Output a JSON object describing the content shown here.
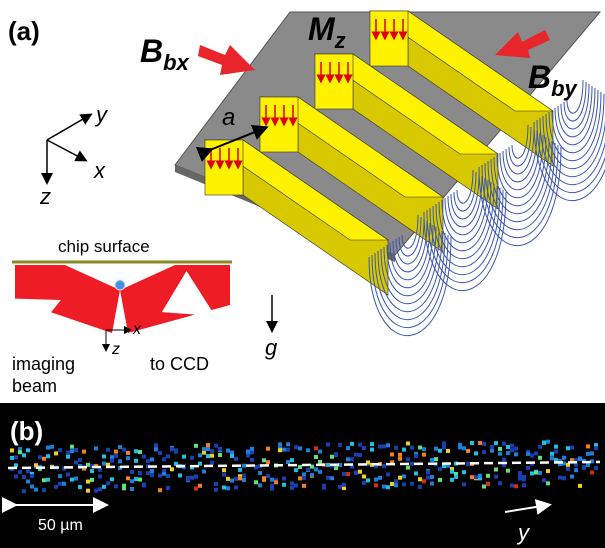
{
  "panel_a": {
    "label": "(a)",
    "field_bx": {
      "symbol": "B",
      "subscript": "bx"
    },
    "magnetization": {
      "symbol": "M",
      "subscript": "z"
    },
    "field_by": {
      "symbol": "B",
      "subscript": "by"
    },
    "period": "a",
    "axes": {
      "y": "y",
      "x": "x",
      "z": "z"
    },
    "inset": {
      "surface": "chip surface",
      "x": "x",
      "z": "z",
      "beam_in": [
        "imaging",
        "beam"
      ],
      "beam_out": "to CCD"
    },
    "gravity": "g"
  },
  "panel_b": {
    "label": "(b)",
    "scale_bar": "50 µm",
    "axis": "y"
  }
}
